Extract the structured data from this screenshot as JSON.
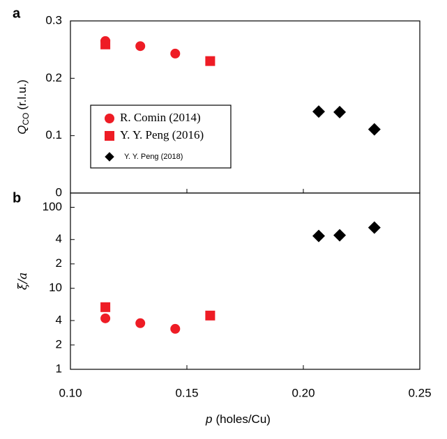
{
  "chart_data": [
    {
      "type": "scatter",
      "panel_label": "a",
      "ylabel": {
        "main": "Q",
        "sub": "CO",
        "rest": "(r.l.u.)"
      },
      "xlim": [
        0.1,
        0.25
      ],
      "xticks": [
        0.1,
        0.15,
        0.2,
        0.25
      ],
      "ylim": [
        0,
        0.3
      ],
      "yticks": [
        0,
        0.1,
        0.2,
        0.3
      ],
      "log_y": false,
      "legend": "center-left",
      "series": [
        {
          "name": "R. Comin (2014)",
          "color": "#ee1c25",
          "marker": "circle",
          "x": [
            0.115,
            0.13,
            0.145
          ],
          "values": [
            0.265,
            0.256,
            0.243
          ]
        },
        {
          "name": "Y. Y. Peng (2016)",
          "color": "#ee1c25",
          "marker": "square",
          "x": [
            0.115,
            0.16
          ],
          "values": [
            0.259,
            0.23
          ]
        },
        {
          "name": "Y. Y. Peng (2018)",
          "color": "#000000",
          "marker": "diamond",
          "x": [
            0.2066,
            0.2156,
            0.2305
          ],
          "values": [
            0.142,
            0.141,
            0.111
          ]
        }
      ]
    },
    {
      "type": "scatter",
      "panel_label": "b",
      "ylabel": {
        "main": "ξ/a"
      },
      "xlabel": {
        "italic": "p",
        "rest": "(holes/Cu)"
      },
      "xlim": [
        0.1,
        0.25
      ],
      "xticks": [
        {
          "value": 0.1,
          "label": "0.10"
        },
        {
          "value": 0.15,
          "label": "0.15"
        },
        {
          "value": 0.2,
          "label": "0.20"
        },
        {
          "value": 0.25,
          "label": "0.25"
        }
      ],
      "ylim": [
        1,
        150
      ],
      "log_y": true,
      "yticks": [
        1,
        2,
        4,
        10,
        {
          "value": 20,
          "label": "2"
        },
        {
          "value": 40,
          "label": "4"
        },
        100
      ],
      "series": [
        {
          "color": "#ee1c25",
          "marker": "circle",
          "x": [
            0.115,
            0.13,
            0.145
          ],
          "values": [
            4.26,
            3.71,
            3.16
          ]
        },
        {
          "color": "#ee1c25",
          "marker": "square",
          "x": [
            0.115,
            0.16
          ],
          "values": [
            5.85,
            4.61
          ]
        },
        {
          "color": "#000000",
          "marker": "diamond",
          "x": [
            0.2066,
            0.2156,
            0.2305
          ],
          "values": [
            44.3,
            45.2,
            56.2
          ]
        }
      ]
    }
  ]
}
